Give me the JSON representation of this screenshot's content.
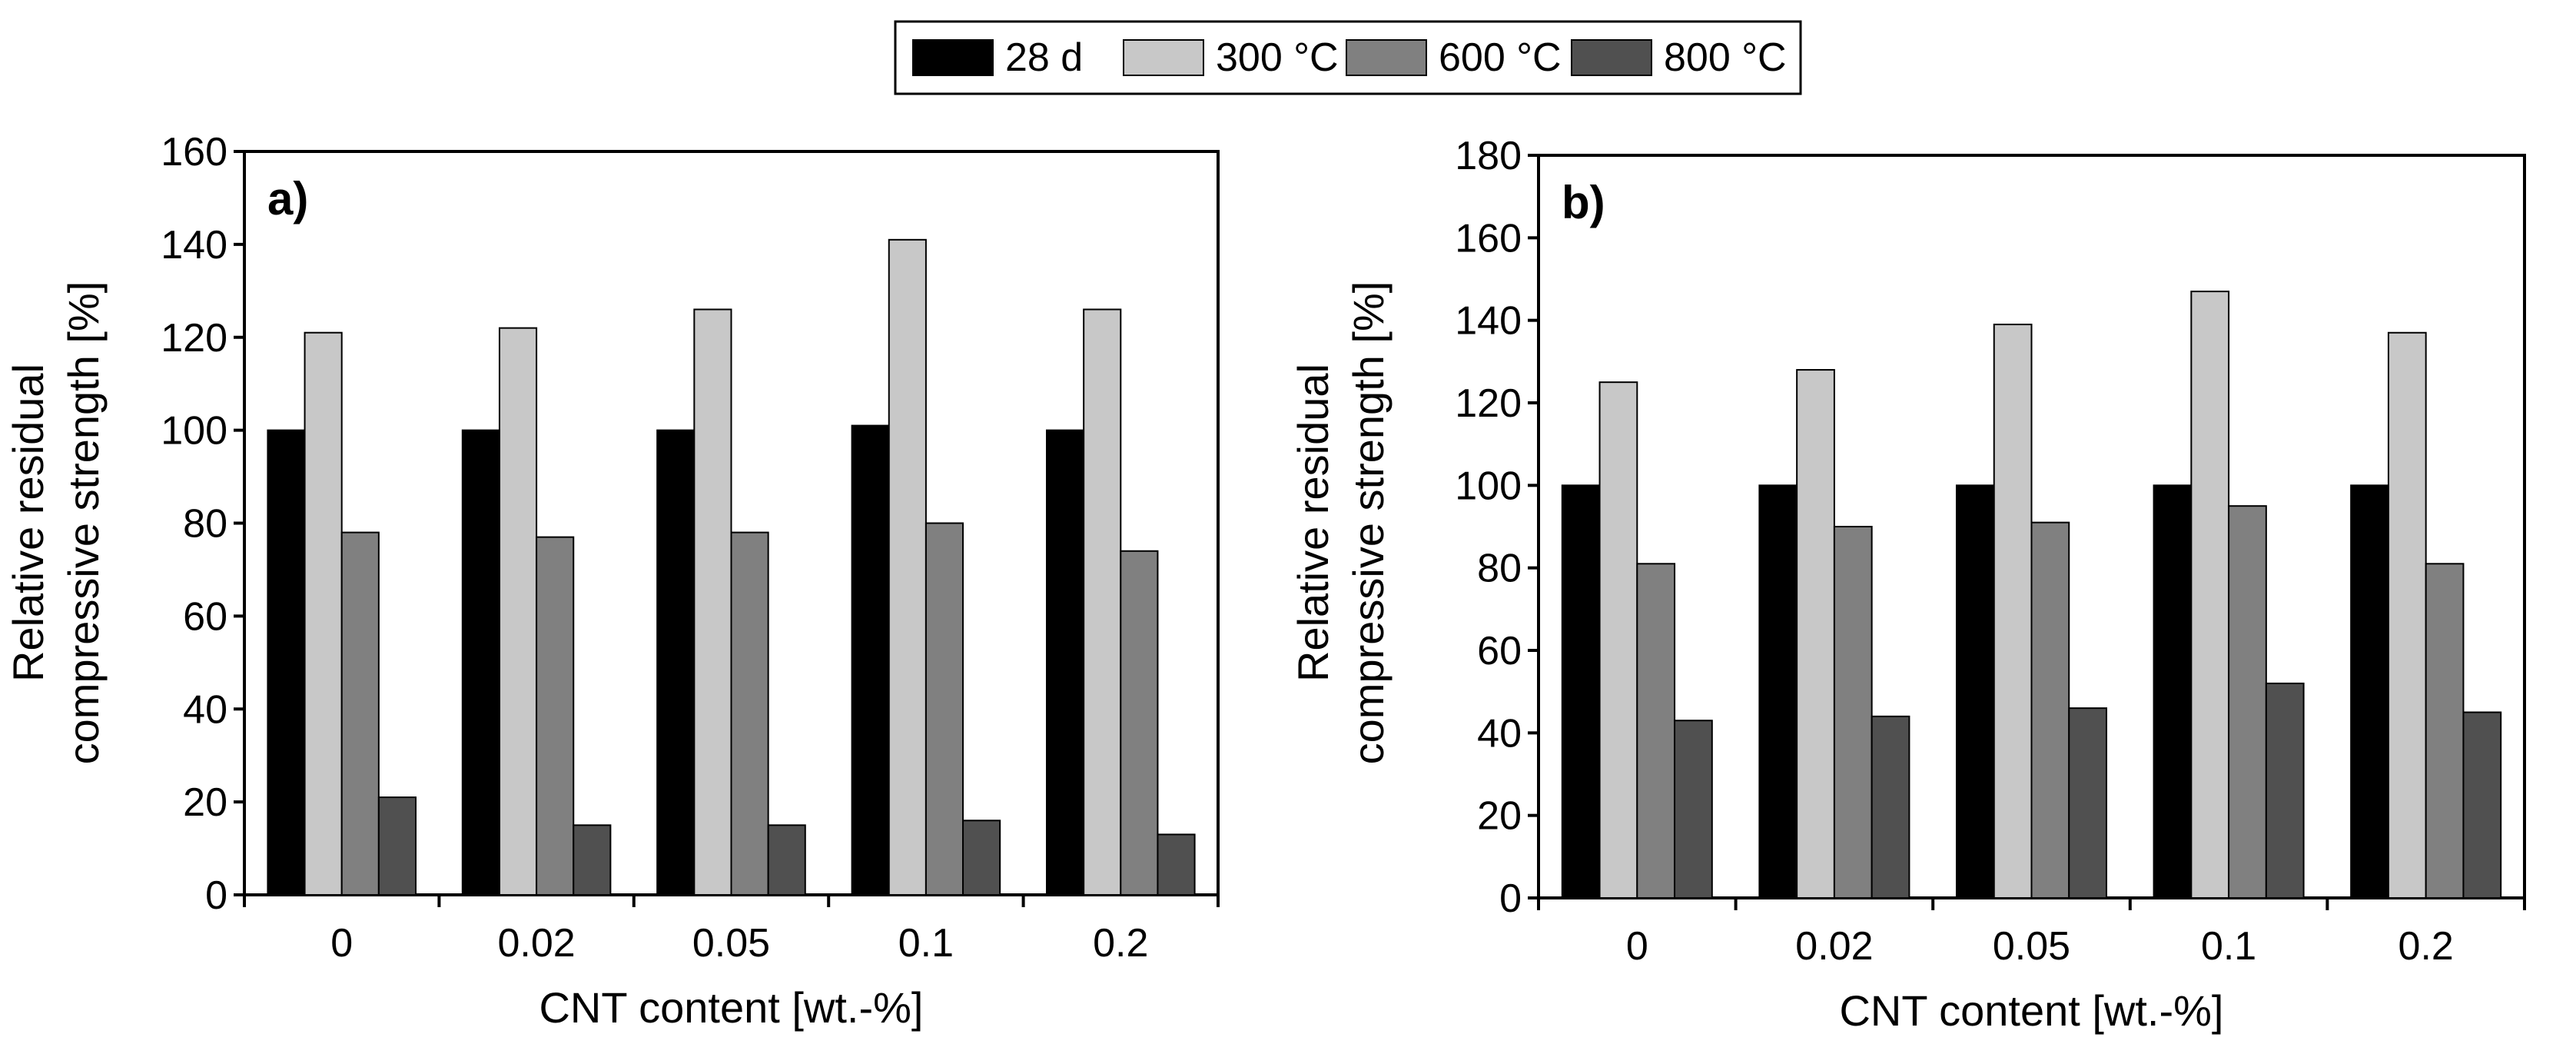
{
  "legend": {
    "entries": [
      {
        "label": "28 d",
        "color": "#000000"
      },
      {
        "label": "300 °C",
        "color": "#c8c8c8"
      },
      {
        "label": "600 °C",
        "color": "#808080"
      },
      {
        "label": "800 °C",
        "color": "#505050"
      }
    ]
  },
  "chart_data": [
    {
      "type": "bar",
      "panel_label": "a)",
      "title": "",
      "xlabel": "CNT content [wt.-%]",
      "ylabel_lines": [
        "Relative residual",
        "compressive strength [%]"
      ],
      "categories": [
        "0",
        "0.02",
        "0.05",
        "0.1",
        "0.2"
      ],
      "ylim": [
        0,
        160
      ],
      "yticks": [
        0,
        20,
        40,
        60,
        80,
        100,
        120,
        140,
        160
      ],
      "grid": false,
      "series": [
        {
          "name": "28 d",
          "values": [
            100,
            100,
            100,
            101,
            100
          ]
        },
        {
          "name": "300 °C",
          "values": [
            121,
            122,
            126,
            141,
            126
          ]
        },
        {
          "name": "600 °C",
          "values": [
            78,
            77,
            78,
            80,
            74
          ]
        },
        {
          "name": "800 °C",
          "values": [
            21,
            15,
            15,
            16,
            13
          ]
        }
      ]
    },
    {
      "type": "bar",
      "panel_label": "b)",
      "title": "",
      "xlabel": "CNT content [wt.-%]",
      "ylabel_lines": [
        "Relative residual",
        "compressive strength [%]"
      ],
      "categories": [
        "0",
        "0.02",
        "0.05",
        "0.1",
        "0.2"
      ],
      "ylim": [
        0,
        180
      ],
      "yticks": [
        0,
        20,
        40,
        60,
        80,
        100,
        120,
        140,
        160,
        180
      ],
      "grid": false,
      "series": [
        {
          "name": "28 d",
          "values": [
            100,
            100,
            100,
            100,
            100
          ]
        },
        {
          "name": "300 °C",
          "values": [
            125,
            128,
            139,
            147,
            137
          ]
        },
        {
          "name": "600 °C",
          "values": [
            81,
            90,
            91,
            95,
            81
          ]
        },
        {
          "name": "800 °C",
          "values": [
            43,
            44,
            46,
            52,
            45
          ]
        }
      ]
    }
  ]
}
